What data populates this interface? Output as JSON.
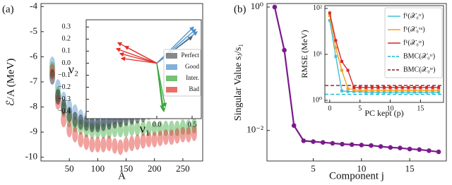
{
  "chart_data": [
    {
      "type": "scatter",
      "panel_label": "(a)",
      "y_label": "ℰ/A (MeV)",
      "x_label": "A",
      "xlim": [
        0,
        285
      ],
      "ylim": [
        -10.15,
        -3.88
      ],
      "xticks": [
        50,
        100,
        150,
        200,
        250
      ],
      "yticks": [
        -10,
        -9,
        -8,
        -7,
        -6,
        -5,
        -4
      ],
      "series": [
        {
          "color": "#4a90c8",
          "x": [
            20,
            30,
            40,
            50,
            60,
            70,
            80,
            90,
            100,
            110,
            120,
            130,
            140,
            150,
            160,
            170,
            180,
            190,
            200,
            210,
            220,
            230,
            240,
            250,
            260,
            270
          ],
          "y": [
            -6.3,
            -7.2,
            -7.7,
            -8.0,
            -8.2,
            -8.4,
            -8.5,
            -8.6,
            -8.6,
            -8.5,
            -8.5,
            -8.4,
            -8.4,
            -8.3,
            -8.3,
            -8.2,
            -8.2,
            -8.1,
            -8.0,
            -7.95,
            -7.9,
            -7.8,
            -7.75,
            -7.7,
            -7.65,
            -7.6
          ]
        },
        {
          "color": "#3aa63a",
          "x": [
            20,
            30,
            40,
            50,
            60,
            70,
            80,
            90,
            100,
            110,
            120,
            130,
            140,
            150,
            160,
            170,
            180,
            190,
            200,
            210,
            220,
            230,
            240,
            250,
            260,
            270
          ],
          "y": [
            -6.5,
            -7.5,
            -8.1,
            -8.5,
            -8.7,
            -8.8,
            -8.9,
            -8.95,
            -8.95,
            -8.95,
            -8.95,
            -8.9,
            -8.9,
            -8.9,
            -8.85,
            -8.85,
            -8.85,
            -8.85,
            -8.85,
            -8.85,
            -8.85,
            -8.85,
            -8.85,
            -8.8,
            -8.8,
            -8.75
          ]
        },
        {
          "color": "#e0302a",
          "x": [
            20,
            30,
            40,
            50,
            60,
            70,
            80,
            90,
            100,
            110,
            120,
            130,
            140,
            150,
            160,
            170,
            180,
            190,
            200,
            210,
            220,
            230,
            240,
            250,
            260,
            270
          ],
          "y": [
            -6.6,
            -7.8,
            -8.5,
            -8.9,
            -9.1,
            -9.3,
            -9.4,
            -9.5,
            -9.5,
            -9.5,
            -9.45,
            -9.55,
            -9.6,
            -9.5,
            -9.45,
            -9.4,
            -9.35,
            -9.3,
            -9.3,
            -9.25,
            -9.2,
            -9.2,
            -9.15,
            -9.1,
            -9.1,
            -9.05
          ]
        },
        {
          "color": "#111111",
          "x": [
            20,
            30,
            40,
            50,
            60,
            70,
            80,
            90,
            100,
            110,
            120,
            130,
            140,
            150,
            160,
            170,
            180,
            190,
            200,
            210,
            220,
            230,
            240,
            250,
            260,
            270
          ],
          "y": [
            -6.8,
            -7.6,
            -8.0,
            -8.3,
            -8.5,
            -8.6,
            -8.65,
            -8.7,
            -8.7,
            -8.65,
            -8.6,
            -8.55,
            -8.5,
            -8.45,
            -8.4,
            -8.35,
            -8.3,
            -8.2,
            -8.15,
            -8.1,
            -8.0,
            -7.95,
            -7.9,
            -7.85,
            -7.8,
            -7.7
          ]
        }
      ]
    },
    {
      "type": "biplot",
      "x_label": "ν₁",
      "y_label": "ν₂",
      "xlim": [
        -1.0,
        0.63
      ],
      "ylim": [
        -0.46,
        0.36
      ],
      "xticks": [
        {
          "value": 0,
          "label": "0.0"
        },
        {
          "value": 0.5,
          "label": "0.5"
        }
      ],
      "yticks": [
        {
          "value": -0.4,
          "label": "−0.4"
        },
        {
          "value": -0.3,
          "label": "−0.3"
        },
        {
          "value": -0.2,
          "label": "−0.2"
        },
        {
          "value": -0.1,
          "label": "−0.1"
        },
        {
          "value": 0,
          "label": "0.0"
        },
        {
          "value": 0.1,
          "label": "0.1"
        },
        {
          "value": 0.2,
          "label": "0.2"
        },
        {
          "value": 0.3,
          "label": "0.3"
        }
      ],
      "series": [
        {
          "name": "Perfect",
          "color": "#555555",
          "x": [
            0.5
          ],
          "y": [
            0.22
          ]
        },
        {
          "name": "Good",
          "color": "#4a90c8",
          "x": [
            0.52,
            0.55,
            0.57
          ],
          "y": [
            0.3,
            0.28,
            0.26
          ]
        },
        {
          "name": "Inter.",
          "color": "#3aa63a",
          "x": [
            0.08,
            0.1,
            0.12
          ],
          "y": [
            -0.38,
            -0.4,
            -0.36
          ]
        },
        {
          "name": "Bad",
          "color": "#e0302a",
          "x": [
            -0.55,
            -0.57,
            -0.52,
            -0.5,
            -0.45
          ],
          "y": [
            0.17,
            0.12,
            0.08,
            0.04,
            0.14
          ]
        }
      ]
    },
    {
      "type": "line",
      "panel_label": "(b)",
      "y_label": "Singular Value sⱼ/s₁",
      "x_label": "Component j",
      "ylog": true,
      "xlim": [
        0.2,
        18.8
      ],
      "ylim": [
        0.0032,
        1.14
      ],
      "xticks": [
        5,
        10,
        15
      ],
      "yticks": [
        {
          "value": 1,
          "label": "10⁰"
        },
        {
          "value": 0.01,
          "label": "10⁻²"
        }
      ],
      "series": [
        {
          "color": "#7a1a8c",
          "x": [
            1,
            2,
            3,
            4,
            5,
            6,
            7,
            8,
            9,
            10,
            11,
            12,
            13,
            14,
            15,
            16,
            17,
            18
          ],
          "values": [
            1.0,
            0.2,
            0.012,
            0.0068,
            0.0066,
            0.0064,
            0.0062,
            0.006,
            0.0059,
            0.0058,
            0.0057,
            0.0055,
            0.0053,
            0.0052,
            0.005,
            0.0049,
            0.0047,
            0.0045
          ]
        }
      ]
    },
    {
      "type": "line",
      "y_label": "RMSE (MeV)",
      "x_label": "PC kept (p)",
      "ylog": true,
      "xlim": [
        -0.8,
        18.8
      ],
      "ylim": [
        0.9,
        115
      ],
      "xticks": [
        0,
        5,
        10,
        15
      ],
      "yticks": [
        {
          "value": 1,
          "label": "10⁰"
        },
        {
          "value": 10,
          "label": "10¹"
        },
        {
          "value": 100,
          "label": "10²"
        }
      ],
      "series": [
        {
          "name": "f¹(𝒳₀ᵗʳ)",
          "color": "#3ec1d6",
          "x": [
            0,
            1,
            2,
            3,
            4,
            5,
            6,
            7,
            8,
            9,
            10,
            11,
            12,
            13,
            14,
            15,
            16,
            17,
            18
          ],
          "values": [
            55,
            9,
            1.6,
            1.55,
            1.55,
            1.55,
            1.5,
            1.5,
            1.5,
            1.5,
            1.5,
            1.5,
            1.5,
            1.5,
            1.5,
            1.5,
            1.5,
            1.5,
            1.5
          ]
        },
        {
          "name": "f¹(𝒳₀ᵛᵃ)",
          "color": "#f2a31b",
          "x": [
            0,
            1,
            2,
            3,
            4,
            5,
            6,
            7,
            8,
            9,
            10,
            11,
            12,
            13,
            14,
            15,
            16,
            17,
            18
          ],
          "values": [
            70,
            14,
            4.5,
            1.8,
            1.7,
            1.65,
            1.65,
            1.65,
            1.65,
            1.65,
            1.65,
            1.65,
            1.65,
            1.65,
            1.65,
            1.65,
            1.65,
            1.65,
            1.65
          ]
        },
        {
          "name": "f¹(𝒳₀ᵗᵉ)",
          "color": "#d62728",
          "x": [
            0,
            1,
            2,
            3,
            4,
            5,
            6,
            7,
            8,
            9,
            10,
            11,
            12,
            13,
            14,
            15,
            16,
            17,
            18
          ],
          "values": [
            80,
            20,
            7,
            4.5,
            1.9,
            1.9,
            1.9,
            1.9,
            1.9,
            1.9,
            1.9,
            1.9,
            1.9,
            1.9,
            1.9,
            1.9,
            1.9,
            1.9,
            1.9
          ]
        }
      ],
      "hlines": [
        {
          "name": "BMC(𝒳₀ᵗʳ)",
          "color": "#17b5cc",
          "value": 1.35
        },
        {
          "name": "BMC(𝒳₀ᵗᵉ)",
          "color": "#8b1a1a",
          "value": 2.1
        }
      ]
    }
  ]
}
